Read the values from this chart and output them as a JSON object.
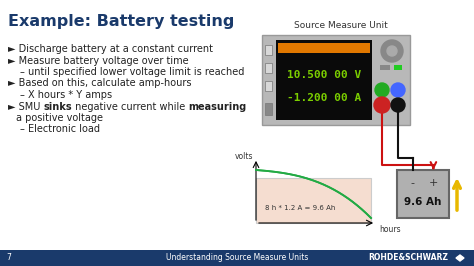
{
  "title": "Example: Battery testing",
  "title_color": "#1a3a6b",
  "footer_bg": "#1a3a6b",
  "footer_text": "Understanding Source Measure Units",
  "footer_page": "7",
  "footer_brand": "ROHDE&SCHWARZ",
  "bullet_points": [
    {
      "level": 0,
      "bold_parts": [],
      "text": "Discharge battery at a constant current"
    },
    {
      "level": 0,
      "bold_parts": [],
      "text": "Measure battery voltage over time"
    },
    {
      "level": 1,
      "bold_parts": [],
      "text": "until specified lower voltage limit is reached"
    },
    {
      "level": 0,
      "bold_parts": [],
      "text": "Based on this, calculate amp-hours"
    },
    {
      "level": 1,
      "bold_parts": [],
      "text": "X hours * Y amps"
    },
    {
      "level": 0,
      "bold_parts": [
        "sinks",
        "measuring"
      ],
      "text": "SMU sinks negative current while measuring"
    },
    {
      "level": 2,
      "bold_parts": [],
      "text": "a positive voltage"
    },
    {
      "level": 1,
      "bold_parts": [],
      "text": "Electronic load"
    }
  ],
  "smu_label": "Source Measure Unit",
  "smu_display_line1": "10.500 00 V",
  "smu_display_line2": "-1.200 00 A",
  "smu_display_color": "#7bce00",
  "smu_body_color": "#b8b8b8",
  "smu_screen_color": "#0a0a0a",
  "smu_orange_color": "#e07800",
  "battery_label": "9.6 Ah",
  "battery_color": "#b0b0b0",
  "graph_xlabel": "hours",
  "graph_ylabel": "volts",
  "graph_annotation": "8 h * 1.2 A = 9.6 Ah",
  "graph_line_color": "#22aa44",
  "graph_fill_color": "#f5ddd0",
  "wire_black": "#111111",
  "wire_red": "#cc1111",
  "wire_yellow": "#e8b800"
}
